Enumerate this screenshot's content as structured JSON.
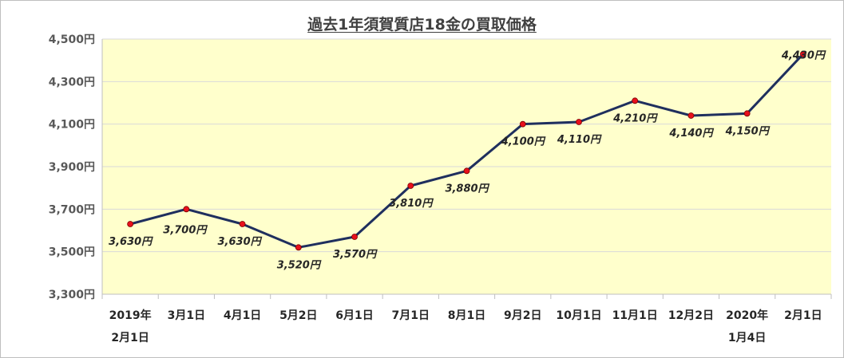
{
  "chart_data": {
    "type": "line",
    "title": "過去1年須賀質店18金の買取価格",
    "xlabel": "",
    "ylabel": "",
    "categories": [
      [
        "2019年",
        "2月1日"
      ],
      [
        "3月1日"
      ],
      [
        "4月1日"
      ],
      [
        "5月2日"
      ],
      [
        "6月1日"
      ],
      [
        "7月1日"
      ],
      [
        "8月1日"
      ],
      [
        "9月2日"
      ],
      [
        "10月1日"
      ],
      [
        "11月1日"
      ],
      [
        "12月2日"
      ],
      [
        "2020年",
        "1月4日"
      ],
      [
        "2月1日"
      ]
    ],
    "series": [
      {
        "values": [
          3630,
          3700,
          3630,
          3520,
          3570,
          3810,
          3880,
          4100,
          4110,
          4210,
          4140,
          4150,
          4430
        ],
        "labels": [
          "3,630円",
          "3,700円",
          "3,630円",
          "3,520円",
          "3,570円",
          "3,810円",
          "3,880円",
          "4,100円",
          "4,110円",
          "4,210円",
          "4,140円",
          "4,150円",
          "4,430円"
        ]
      }
    ],
    "ylim": [
      3300,
      4500
    ],
    "yticks": [
      3300,
      3500,
      3700,
      3900,
      4100,
      4300,
      4500
    ],
    "ytick_labels": [
      "3,300円",
      "3,500円",
      "3,700円",
      "3,900円",
      "4,100円",
      "4,300円",
      "4,500円"
    ],
    "grid": true,
    "legend": "none",
    "colors": {
      "plot_background": "#ffffcc",
      "line": "#1f2f5e",
      "marker": "#e8101c",
      "gridline": "#d9d9d9"
    }
  }
}
